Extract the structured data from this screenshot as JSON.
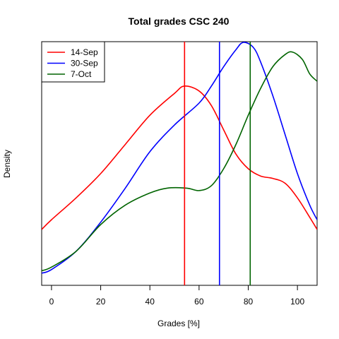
{
  "chart_data": {
    "type": "line",
    "title": "Total grades CSC 240",
    "xlabel": "Grades [%]",
    "ylabel": "Density",
    "xlim": [
      -4,
      108
    ],
    "ylim": [
      0,
      1
    ],
    "xticks": [
      0,
      20,
      40,
      60,
      80,
      100
    ],
    "xtick_labels": [
      "0",
      "20",
      "40",
      "60",
      "80",
      "100"
    ],
    "y_axis_ticks_shown": false,
    "grid": false,
    "legend_position": "top-left",
    "series": [
      {
        "name": "14-Sep",
        "color": "#ff0000",
        "x": [
          -4,
          0,
          10,
          20,
          30,
          40,
          50,
          54,
          60,
          65,
          70,
          75,
          80,
          85,
          90,
          95,
          100,
          105,
          108
        ],
        "y": [
          0.23,
          0.27,
          0.36,
          0.46,
          0.58,
          0.7,
          0.79,
          0.82,
          0.8,
          0.74,
          0.64,
          0.54,
          0.48,
          0.45,
          0.44,
          0.42,
          0.36,
          0.28,
          0.23
        ],
        "mean_line": 54.1
      },
      {
        "name": "30-Sep",
        "color": "#0000ff",
        "x": [
          -4,
          0,
          10,
          20,
          30,
          40,
          50,
          60,
          65,
          70,
          75,
          78,
          82,
          85,
          90,
          95,
          100,
          105,
          108
        ],
        "y": [
          0.05,
          0.065,
          0.14,
          0.26,
          0.4,
          0.55,
          0.66,
          0.75,
          0.82,
          0.9,
          0.97,
          1.0,
          0.98,
          0.92,
          0.78,
          0.62,
          0.46,
          0.33,
          0.27
        ],
        "mean_line": 68.3
      },
      {
        "name": "7-Oct",
        "color": "#006400",
        "x": [
          -4,
          0,
          10,
          20,
          30,
          40,
          47,
          55,
          60,
          65,
          70,
          75,
          80,
          85,
          90,
          95,
          98,
          102,
          105,
          108
        ],
        "y": [
          0.06,
          0.075,
          0.14,
          0.25,
          0.33,
          0.38,
          0.4,
          0.4,
          0.39,
          0.41,
          0.48,
          0.58,
          0.7,
          0.81,
          0.9,
          0.95,
          0.96,
          0.93,
          0.87,
          0.84
        ],
        "mean_line": 80.8
      }
    ]
  }
}
